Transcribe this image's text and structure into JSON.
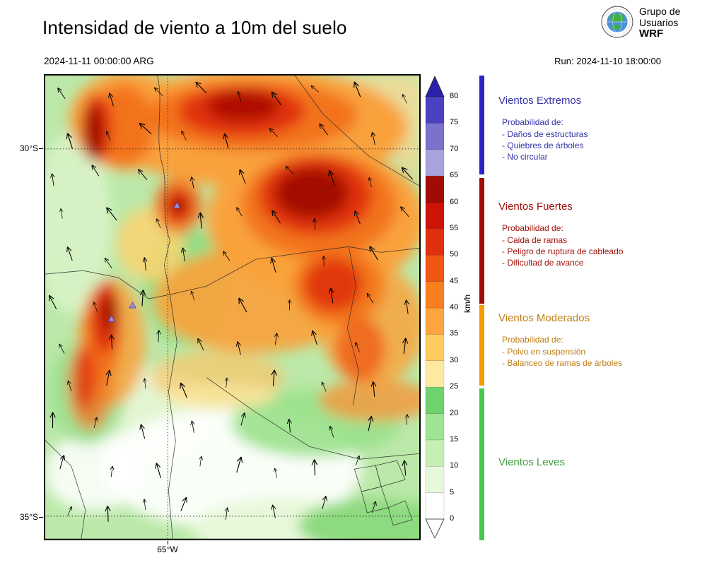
{
  "header": {
    "title": "Intensidad de viento a 10m del suelo",
    "valid_time": "2024-11-11 00:00:00 ARG",
    "run_label": "Run: 2024-11-10 18:00:00",
    "logo": {
      "line1": "Grupo de",
      "line2": "Usuarios",
      "line3": "WRF"
    }
  },
  "map": {
    "lat_labels": [
      "30°S",
      "35°S"
    ],
    "lon_labels": [
      "65°W"
    ]
  },
  "colorbar": {
    "unit": "km/h",
    "tick_labels": [
      "0",
      "5",
      "10",
      "15",
      "20",
      "25",
      "30",
      "35",
      "40",
      "45",
      "50",
      "55",
      "60",
      "65",
      "70",
      "75",
      "80"
    ],
    "segment_colors": [
      "#ffffff",
      "#e7f9dc",
      "#c6efb4",
      "#9ee492",
      "#6ed26e",
      "#fde9a2",
      "#fdcb60",
      "#fca43e",
      "#f97f1e",
      "#f05614",
      "#e0300e",
      "#cc1407",
      "#a00b05",
      "#a8a2dd",
      "#7a72cc",
      "#4a42c0"
    ],
    "over_color": "#2a22a8",
    "under_color": "#ffffff"
  },
  "legend": {
    "sections": [
      {
        "title": "Vientos Extremos",
        "color": "#3333a8",
        "strip_color": "#2a22c8",
        "subtitle": "Probabilidad de:",
        "items": [
          "- Daños de estructuras",
          "- Quiebres de árboles",
          "- No circular"
        ]
      },
      {
        "title": "Vientos Fuertes",
        "color": "#a01008",
        "strip_color": "#a00b05",
        "subtitle": "Probabilidad de:",
        "items": [
          "- Caida de ramas",
          "- Peligro de ruptura de cableado",
          "- Dificultad de avance"
        ]
      },
      {
        "title": "Vientos Moderados",
        "color": "#bf7d10",
        "strip_color": "#f59a00",
        "subtitle": "Probabilidad de:",
        "items": [
          "- Polvo en suspensión",
          "- Balanceo de ramas de árboles"
        ]
      },
      {
        "title": "Vientos Leves",
        "color": "#3f9e3f",
        "strip_color": "#44c850",
        "subtitle": "",
        "items": []
      }
    ]
  }
}
